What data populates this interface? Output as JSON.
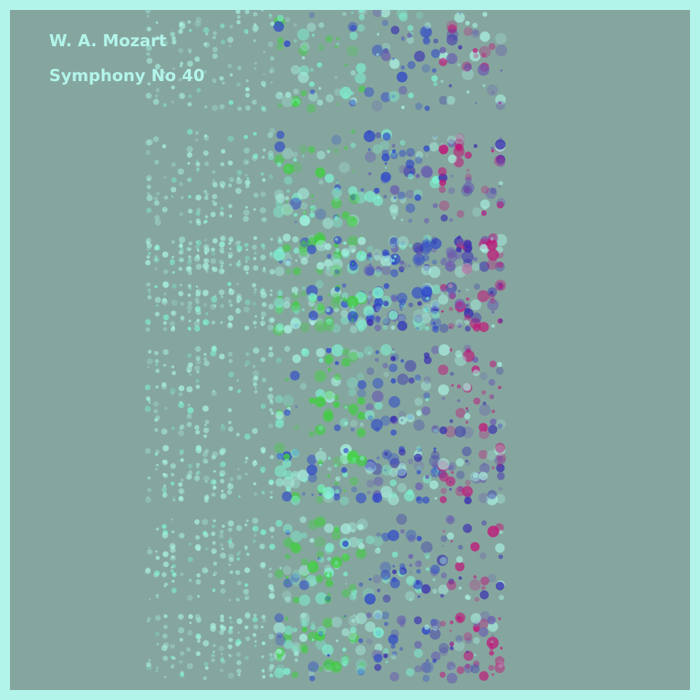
{
  "artwork": {
    "composer": "W. A. Mozart",
    "piece": "Symphony No 40"
  },
  "palette": {
    "border": "#b2f4ea",
    "background": "#85a69f",
    "title_text": "#b2f4ea",
    "note_colors": [
      "#a8f0e0",
      "#7ef2d2",
      "#3fcf3f",
      "#2f49c9",
      "#3a2fb0",
      "#6a5fb0",
      "#c0187a"
    ]
  }
}
